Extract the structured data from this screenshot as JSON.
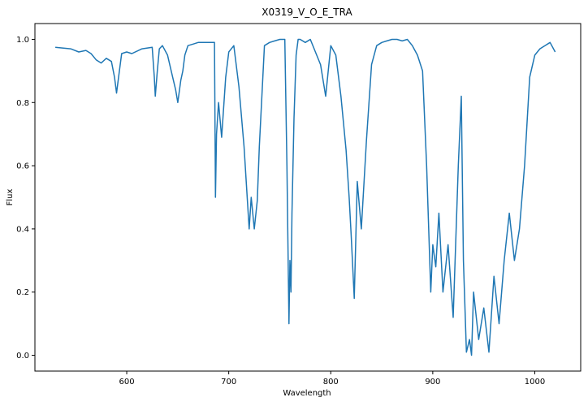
{
  "chart_data": {
    "type": "line",
    "title": "X0319_V_O_E_TRA",
    "xlabel": "Wavelength",
    "ylabel": "Flux",
    "xlim": [
      510,
      1045
    ],
    "ylim": [
      -0.05,
      1.05
    ],
    "xticks": [
      {
        "value": 600,
        "label": "600"
      },
      {
        "value": 700,
        "label": "700"
      },
      {
        "value": 800,
        "label": "800"
      },
      {
        "value": 900,
        "label": "900"
      },
      {
        "value": 1000,
        "label": "1000"
      }
    ],
    "yticks": [
      {
        "value": 0.0,
        "label": "0.0"
      },
      {
        "value": 0.2,
        "label": "0.2"
      },
      {
        "value": 0.4,
        "label": "0.4"
      },
      {
        "value": 0.6,
        "label": "0.6"
      },
      {
        "value": 0.8,
        "label": "0.8"
      },
      {
        "value": 1.0,
        "label": "1.0"
      }
    ],
    "grid": false,
    "series": [
      {
        "color": "#1f77b4",
        "x": [
          530,
          545,
          553,
          560,
          565,
          570,
          575,
          580,
          585,
          588,
          590,
          592,
          595,
          600,
          605,
          615,
          625,
          627,
          628,
          630,
          632,
          635,
          640,
          645,
          648,
          650,
          653,
          655,
          657,
          660,
          665,
          670,
          675,
          680,
          686,
          687,
          688,
          690,
          693,
          697,
          700,
          705,
          710,
          715,
          720,
          722,
          725,
          728,
          730,
          735,
          740,
          745,
          750,
          755,
          757,
          759,
          760,
          761,
          762,
          764,
          766,
          768,
          770,
          775,
          780,
          790,
          795,
          800,
          805,
          810,
          815,
          818,
          820,
          823,
          826,
          830,
          835,
          840,
          845,
          850,
          855,
          860,
          865,
          870,
          875,
          880,
          885,
          890,
          894,
          898,
          900,
          903,
          906,
          910,
          915,
          920,
          925,
          928,
          930,
          933,
          936,
          938,
          940,
          945,
          950,
          955,
          960,
          965,
          970,
          975,
          980,
          985,
          990,
          995,
          1000,
          1005,
          1010,
          1015,
          1020
        ],
        "y": [
          0.975,
          0.97,
          0.96,
          0.965,
          0.955,
          0.935,
          0.925,
          0.94,
          0.93,
          0.88,
          0.83,
          0.88,
          0.955,
          0.96,
          0.955,
          0.97,
          0.975,
          0.88,
          0.82,
          0.9,
          0.97,
          0.98,
          0.95,
          0.88,
          0.84,
          0.8,
          0.87,
          0.9,
          0.95,
          0.98,
          0.985,
          0.99,
          0.99,
          0.99,
          0.99,
          0.5,
          0.7,
          0.8,
          0.69,
          0.88,
          0.96,
          0.98,
          0.85,
          0.66,
          0.4,
          0.5,
          0.4,
          0.49,
          0.66,
          0.98,
          0.99,
          0.995,
          1.0,
          1.0,
          0.6,
          0.1,
          0.3,
          0.2,
          0.45,
          0.75,
          0.95,
          1.0,
          1.0,
          0.99,
          1.0,
          0.92,
          0.82,
          0.98,
          0.95,
          0.82,
          0.65,
          0.5,
          0.38,
          0.18,
          0.55,
          0.4,
          0.68,
          0.92,
          0.98,
          0.99,
          0.995,
          1.0,
          1.0,
          0.995,
          1.0,
          0.98,
          0.95,
          0.9,
          0.6,
          0.2,
          0.35,
          0.28,
          0.45,
          0.2,
          0.35,
          0.12,
          0.6,
          0.82,
          0.3,
          0.01,
          0.05,
          0.0,
          0.2,
          0.05,
          0.15,
          0.01,
          0.25,
          0.1,
          0.3,
          0.45,
          0.3,
          0.4,
          0.6,
          0.88,
          0.95,
          0.97,
          0.98,
          0.99,
          0.96
        ]
      }
    ]
  }
}
